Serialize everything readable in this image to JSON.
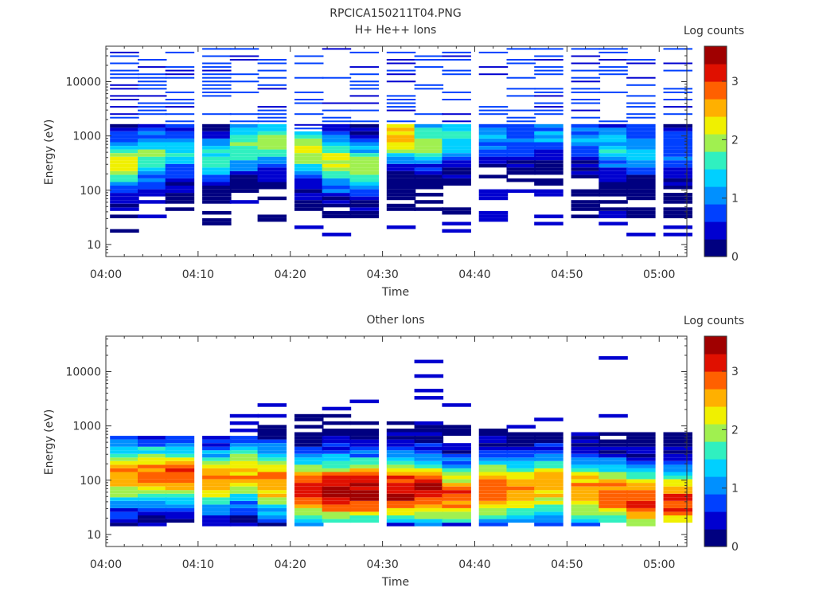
{
  "figure_title": "RPCICA150211T04.PNG",
  "colormap": [
    "#000080",
    "#0000d0",
    "#0040ff",
    "#0090ff",
    "#00d0ff",
    "#30f0c0",
    "#a0f050",
    "#f0f000",
    "#ffb000",
    "#ff6000",
    "#e01000",
    "#a00000"
  ],
  "chart_data": [
    {
      "type": "heatmap",
      "title": "H+ He++ Ions",
      "xlabel": "Time",
      "ylabel": "Energy (eV)",
      "colorbar_label": "Log counts",
      "yscale": "log",
      "ylim": [
        6,
        45000
      ],
      "xlim": [
        "04:00",
        "05:03"
      ],
      "xticks": [
        "04:00",
        "04:10",
        "04:20",
        "04:30",
        "04:40",
        "04:50",
        "05:00"
      ],
      "yticks": [
        "10",
        "100",
        "1000",
        "10000"
      ],
      "colorbar_range": [
        0,
        3.6
      ],
      "colorbar_ticks": [
        "0",
        "1",
        "2",
        "3"
      ],
      "time_bins": [
        "04:02",
        "04:05",
        "04:08",
        "04:12",
        "04:15",
        "04:18",
        "04:22",
        "04:25",
        "04:28",
        "04:32",
        "04:35",
        "04:38",
        "04:42",
        "04:45",
        "04:48",
        "04:52",
        "04:55",
        "04:58",
        "05:02"
      ],
      "profiles": [
        {
          "peak_log_energy": 2.5,
          "peak_value": 2.2,
          "width": 0.45,
          "low_cut": 1.25,
          "high_cut": 3.2,
          "sparse_top": 4.6
        },
        {
          "peak_log_energy": 2.6,
          "peak_value": 1.9,
          "width": 0.45,
          "low_cut": 1.9,
          "high_cut": 3.2,
          "sparse_top": 4.6
        },
        {
          "peak_log_energy": 2.7,
          "peak_value": 1.4,
          "width": 0.45,
          "low_cut": 1.6,
          "high_cut": 3.2,
          "sparse_top": 4.6
        },
        {
          "peak_log_energy": 2.6,
          "peak_value": 1.6,
          "width": 0.45,
          "low_cut": 1.3,
          "high_cut": 3.2,
          "sparse_top": 4.6
        },
        {
          "peak_log_energy": 2.8,
          "peak_value": 1.8,
          "width": 0.45,
          "low_cut": 1.9,
          "high_cut": 3.2,
          "sparse_top": 4.6
        },
        {
          "peak_log_energy": 2.9,
          "peak_value": 2.0,
          "width": 0.45,
          "low_cut": 1.4,
          "high_cut": 3.2,
          "sparse_top": 4.6
        },
        {
          "peak_log_energy": 2.7,
          "peak_value": 2.1,
          "width": 0.5,
          "low_cut": 1.5,
          "high_cut": 3.1,
          "sparse_top": 4.6
        },
        {
          "peak_log_energy": 2.5,
          "peak_value": 2.1,
          "width": 0.5,
          "low_cut": 1.5,
          "high_cut": 3.2,
          "sparse_top": 4.6
        },
        {
          "peak_log_energy": 2.4,
          "peak_value": 2.0,
          "width": 0.5,
          "low_cut": 1.4,
          "high_cut": 3.2,
          "sparse_top": 4.6
        },
        {
          "peak_log_energy": 3.0,
          "peak_value": 2.6,
          "width": 0.45,
          "low_cut": 1.5,
          "high_cut": 3.2,
          "sparse_top": 4.6
        },
        {
          "peak_log_energy": 2.9,
          "peak_value": 2.0,
          "width": 0.45,
          "low_cut": 1.3,
          "high_cut": 3.2,
          "sparse_top": 4.6
        },
        {
          "peak_log_energy": 3.0,
          "peak_value": 1.5,
          "width": 0.45,
          "low_cut": 1.5,
          "high_cut": 3.2,
          "sparse_top": 4.6
        },
        {
          "peak_log_energy": 3.0,
          "peak_value": 1.1,
          "width": 0.4,
          "low_cut": 2.0,
          "high_cut": 3.2,
          "sparse_top": 4.6
        },
        {
          "peak_log_energy": 3.0,
          "peak_value": 1.0,
          "width": 0.4,
          "low_cut": 2.1,
          "high_cut": 3.2,
          "sparse_top": 4.6
        },
        {
          "peak_log_energy": 3.0,
          "peak_value": 1.1,
          "width": 0.4,
          "low_cut": 2.0,
          "high_cut": 3.2,
          "sparse_top": 4.6
        },
        {
          "peak_log_energy": 2.9,
          "peak_value": 1.0,
          "width": 0.4,
          "low_cut": 1.4,
          "high_cut": 3.2,
          "sparse_top": 4.6
        },
        {
          "peak_log_energy": 2.8,
          "peak_value": 1.4,
          "width": 0.45,
          "low_cut": 1.6,
          "high_cut": 3.2,
          "sparse_top": 4.6
        },
        {
          "peak_log_energy": 2.7,
          "peak_value": 1.3,
          "width": 0.45,
          "low_cut": 1.5,
          "high_cut": 3.2,
          "sparse_top": 4.6
        },
        {
          "peak_log_energy": 2.7,
          "peak_value": 1.0,
          "width": 0.45,
          "low_cut": 1.5,
          "high_cut": 3.2,
          "sparse_top": 4.6
        }
      ]
    },
    {
      "type": "heatmap",
      "title": "Other Ions",
      "xlabel": "Time",
      "ylabel": "Energy (eV)",
      "colorbar_label": "Log counts",
      "yscale": "log",
      "ylim": [
        6,
        45000
      ],
      "xlim": [
        "04:00",
        "05:03"
      ],
      "xticks": [
        "04:00",
        "04:10",
        "04:20",
        "04:30",
        "04:40",
        "04:50",
        "05:00"
      ],
      "yticks": [
        "10",
        "100",
        "1000",
        "10000"
      ],
      "colorbar_range": [
        0,
        3.6
      ],
      "colorbar_ticks": [
        "0",
        "1",
        "2",
        "3"
      ],
      "time_bins": [
        "04:02",
        "04:05",
        "04:08",
        "04:12",
        "04:15",
        "04:18",
        "04:22",
        "04:25",
        "04:28",
        "04:32",
        "04:35",
        "04:38",
        "04:42",
        "04:45",
        "04:48",
        "04:52",
        "04:55",
        "04:58",
        "05:02"
      ],
      "profiles": [
        {
          "peak_log_energy": 2.1,
          "peak_value": 2.7,
          "width": 0.55,
          "low_cut": 0.9,
          "high_cut": 2.8,
          "sparse_top": 3.3
        },
        {
          "peak_log_energy": 2.1,
          "peak_value": 2.8,
          "width": 0.55,
          "low_cut": 0.9,
          "high_cut": 2.8,
          "sparse_top": 2.8
        },
        {
          "peak_log_energy": 2.1,
          "peak_value": 2.9,
          "width": 0.55,
          "low_cut": 1.2,
          "high_cut": 2.8,
          "sparse_top": 4.3
        },
        {
          "peak_log_energy": 2.0,
          "peak_value": 2.7,
          "width": 0.55,
          "low_cut": 0.8,
          "high_cut": 2.8,
          "sparse_top": 3.3
        },
        {
          "peak_log_energy": 2.1,
          "peak_value": 2.6,
          "width": 0.55,
          "low_cut": 0.9,
          "high_cut": 2.8,
          "sparse_top": 3.4
        },
        {
          "peak_log_energy": 2.0,
          "peak_value": 2.8,
          "width": 0.6,
          "low_cut": 0.9,
          "high_cut": 3.0,
          "sparse_top": 3.4
        },
        {
          "peak_log_energy": 1.8,
          "peak_value": 3.2,
          "width": 0.6,
          "low_cut": 0.8,
          "high_cut": 3.2,
          "sparse_top": 3.3
        },
        {
          "peak_log_energy": 1.8,
          "peak_value": 3.5,
          "width": 0.6,
          "low_cut": 1.2,
          "high_cut": 3.3,
          "sparse_top": 3.6
        },
        {
          "peak_log_energy": 1.8,
          "peak_value": 3.5,
          "width": 0.6,
          "low_cut": 1.2,
          "high_cut": 3.2,
          "sparse_top": 3.5
        },
        {
          "peak_log_energy": 1.8,
          "peak_value": 3.4,
          "width": 0.6,
          "low_cut": 1.2,
          "high_cut": 3.1,
          "sparse_top": 3.4
        },
        {
          "peak_log_energy": 1.8,
          "peak_value": 3.2,
          "width": 0.6,
          "low_cut": 0.9,
          "high_cut": 3.0,
          "sparse_top": 4.3
        },
        {
          "peak_log_energy": 1.7,
          "peak_value": 2.9,
          "width": 0.6,
          "low_cut": 1.2,
          "high_cut": 3.0,
          "sparse_top": 3.4
        },
        {
          "peak_log_energy": 1.8,
          "peak_value": 2.9,
          "width": 0.6,
          "low_cut": 1.0,
          "high_cut": 3.0,
          "sparse_top": 3.3
        },
        {
          "peak_log_energy": 1.8,
          "peak_value": 2.7,
          "width": 0.6,
          "low_cut": 1.2,
          "high_cut": 2.9,
          "sparse_top": 3.4
        },
        {
          "peak_log_energy": 1.9,
          "peak_value": 2.6,
          "width": 0.6,
          "low_cut": 1.0,
          "high_cut": 2.9,
          "sparse_top": 3.2
        },
        {
          "peak_log_energy": 1.8,
          "peak_value": 2.7,
          "width": 0.6,
          "low_cut": 1.0,
          "high_cut": 2.9,
          "sparse_top": 3.2
        },
        {
          "peak_log_energy": 1.7,
          "peak_value": 2.9,
          "width": 0.6,
          "low_cut": 1.2,
          "high_cut": 2.9,
          "sparse_top": 4.5
        },
        {
          "peak_log_energy": 1.6,
          "peak_value": 3.0,
          "width": 0.6,
          "low_cut": 0.8,
          "high_cut": 2.9,
          "sparse_top": 3.0
        },
        {
          "peak_log_energy": 1.6,
          "peak_value": 3.1,
          "width": 0.6,
          "low_cut": 1.2,
          "high_cut": 2.9,
          "sparse_top": 3.0
        }
      ]
    }
  ]
}
